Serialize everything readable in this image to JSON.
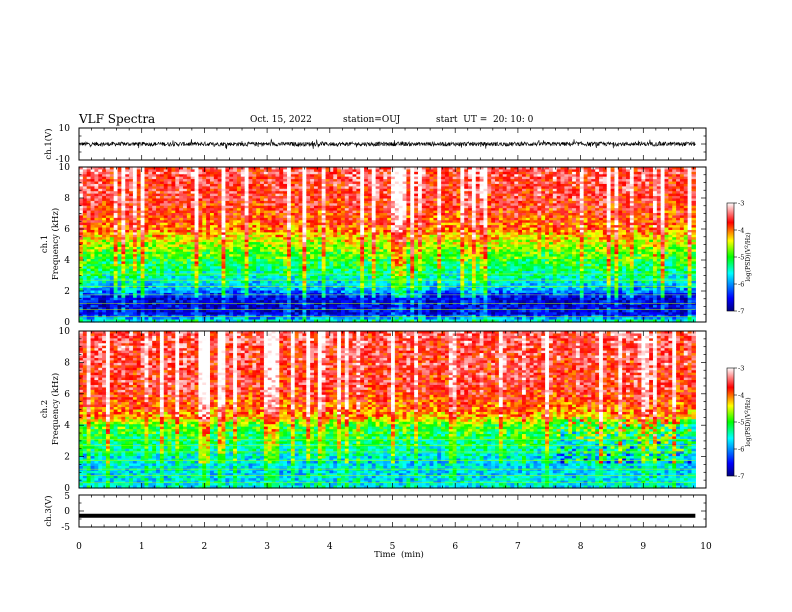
{
  "header": {
    "title": "VLF Spectra",
    "date": "Oct. 15, 2022",
    "station": "station=OUJ",
    "start": "start  UT =  20: 10: 0"
  },
  "chart_data": [
    {
      "type": "line",
      "id": "ch1-waveform",
      "ylabel": "ch.1(V)",
      "ylim": [
        -10,
        10
      ],
      "yticks": [
        "10",
        "-10"
      ],
      "xlim": [
        0,
        10
      ],
      "data_extent_min": [
        0,
        9.83
      ],
      "note_signal": "noisy waveform centred near 0 V, amplitude about ±1.5 V with spikes to about ±3 V"
    },
    {
      "type": "heatmap",
      "id": "ch1-spectrogram",
      "ylabel": "ch.1\nFrequency  (kHz)",
      "ylim": [
        0,
        10
      ],
      "yticks": [
        "0",
        "2",
        "4",
        "6",
        "8",
        "10"
      ],
      "xlim": [
        0,
        10
      ],
      "data_extent_min": [
        0,
        9.83
      ],
      "colorbar": {
        "label": "log(PSD)(V²/Hz)",
        "range": [
          -7,
          -3
        ],
        "ticks": [
          "-3",
          "-4",
          "-5",
          "-6",
          "-7"
        ]
      },
      "level_profile": [
        {
          "freq_khz": 0.0,
          "log_psd": -5.3
        },
        {
          "freq_khz": 0.5,
          "log_psd": -6.6
        },
        {
          "freq_khz": 1.5,
          "log_psd": -6.6
        },
        {
          "freq_khz": 2.2,
          "log_psd": -5.8
        },
        {
          "freq_khz": 3.0,
          "log_psd": -5.4
        },
        {
          "freq_khz": 4.0,
          "log_psd": -5.0
        },
        {
          "freq_khz": 5.0,
          "log_psd": -4.6
        },
        {
          "freq_khz": 6.0,
          "log_psd": -4.0
        },
        {
          "freq_khz": 7.5,
          "log_psd": -3.7
        },
        {
          "freq_khz": 10.0,
          "log_psd": -3.5
        }
      ]
    },
    {
      "type": "heatmap",
      "id": "ch2-spectrogram",
      "ylabel": "ch.2\nFrequency  (kHz)",
      "ylim": [
        0,
        10
      ],
      "yticks": [
        "0",
        "2",
        "4",
        "6",
        "8",
        "10"
      ],
      "xlim": [
        0,
        10
      ],
      "data_extent_min": [
        0,
        9.83
      ],
      "colorbar": {
        "label": "log(PSD)(V²/Hz)",
        "range": [
          -7,
          -3
        ],
        "ticks": [
          "-3",
          "-4",
          "-5",
          "-6",
          "-7"
        ]
      },
      "level_profile": [
        {
          "freq_khz": 0.0,
          "log_psd": -5.6
        },
        {
          "freq_khz": 1.0,
          "log_psd": -5.7
        },
        {
          "freq_khz": 2.0,
          "log_psd": -5.6
        },
        {
          "freq_khz": 3.0,
          "log_psd": -5.2
        },
        {
          "freq_khz": 4.0,
          "log_psd": -4.9
        },
        {
          "freq_khz": 4.5,
          "log_psd": -4.2
        },
        {
          "freq_khz": 6.0,
          "log_psd": -3.7
        },
        {
          "freq_khz": 10.0,
          "log_psd": -3.5
        }
      ]
    },
    {
      "type": "line",
      "id": "ch3-waveform",
      "ylabel": "ch.3(V)",
      "ylim": [
        -5,
        5
      ],
      "yticks": [
        "5",
        "0",
        "-5"
      ],
      "xlim": [
        0,
        10
      ],
      "xlabel": "Time  (min)",
      "xticks": [
        "0",
        "1",
        "2",
        "3",
        "4",
        "5",
        "6",
        "7",
        "8",
        "9",
        "10"
      ],
      "data_extent_min": [
        0,
        9.83
      ],
      "signal_level_v": -1.5
    }
  ]
}
